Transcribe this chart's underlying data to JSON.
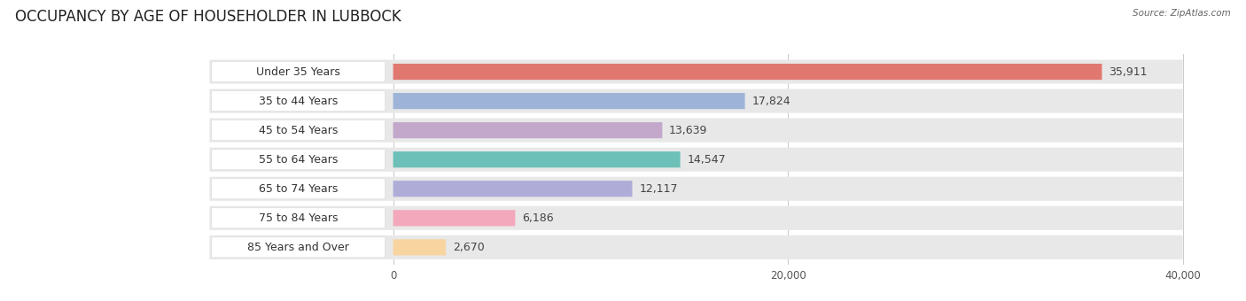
{
  "title": "OCCUPANCY BY AGE OF HOUSEHOLDER IN LUBBOCK",
  "source": "Source: ZipAtlas.com",
  "categories": [
    "Under 35 Years",
    "35 to 44 Years",
    "45 to 54 Years",
    "55 to 64 Years",
    "65 to 74 Years",
    "75 to 84 Years",
    "85 Years and Over"
  ],
  "values": [
    35911,
    17824,
    13639,
    14547,
    12117,
    6186,
    2670
  ],
  "bar_colors": [
    "#e07870",
    "#9db4d8",
    "#c4a8cc",
    "#6cc0b8",
    "#b0acd8",
    "#f4a8bc",
    "#f8d4a0"
  ],
  "xlim_max": 40000,
  "xticks": [
    0,
    20000,
    40000
  ],
  "xticklabels": [
    "0",
    "20,000",
    "40,000"
  ],
  "title_fontsize": 12,
  "label_fontsize": 9,
  "value_fontsize": 9,
  "background_color": "#ffffff",
  "row_bg_color": "#e8e8e8",
  "label_bg_color": "#ffffff"
}
